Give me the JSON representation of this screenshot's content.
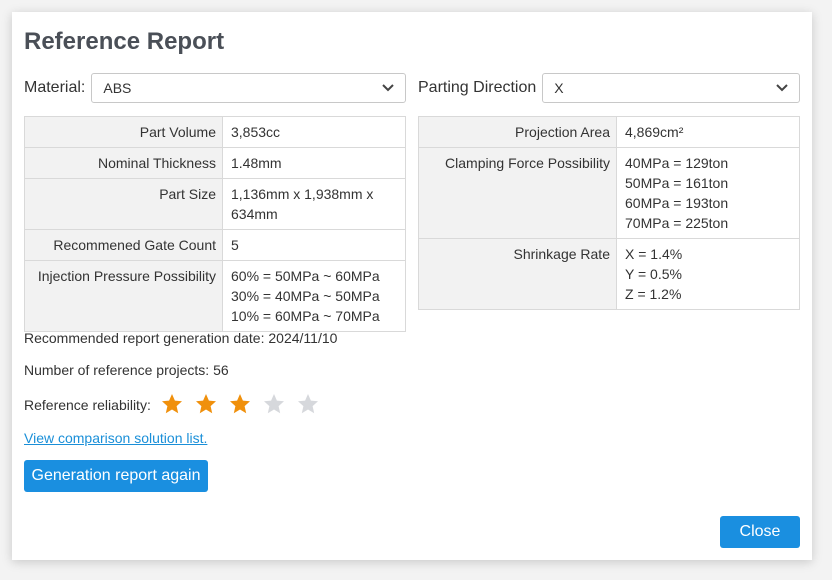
{
  "dialog": {
    "title": "Reference Report",
    "material_label": "Material:",
    "material_value": "ABS",
    "parting_label": "Parting Direction",
    "parting_value": "X"
  },
  "left_table": [
    {
      "key": "Part Volume",
      "lines": [
        "3,853cc"
      ]
    },
    {
      "key": "Nominal Thickness",
      "lines": [
        "1.48mm"
      ]
    },
    {
      "key": "Part Size",
      "lines": [
        "1,136mm x 1,938mm x",
        "634mm"
      ]
    },
    {
      "key": "Recommened Gate Count",
      "lines": [
        "5"
      ]
    },
    {
      "key": "Injection Pressure Possibility",
      "lines": [
        "60% = 50MPa ~ 60MPa",
        "30% = 40MPa ~ 50MPa",
        "10% = 60MPa ~ 70MPa"
      ]
    }
  ],
  "right_table": [
    {
      "key": "Projection Area",
      "lines": [
        "4,869cm²"
      ]
    },
    {
      "key": "Clamping Force Possibility",
      "lines": [
        "40MPa = 129ton",
        "50MPa = 161ton",
        "60MPa = 193ton",
        "70MPa = 225ton"
      ]
    },
    {
      "key": "Shrinkage Rate",
      "lines": [
        "X = 1.4%",
        "Y = 0.5%",
        "Z = 1.2%"
      ]
    }
  ],
  "info": {
    "generation_date": "Recommended report generation date: 2024/11/10",
    "reference_projects": "Number of reference projects: 56",
    "reliability_label": "Reference reliability:",
    "reliability_rating": 3,
    "reliability_max": 5
  },
  "colors": {
    "star_filled": "#f0900c",
    "star_empty": "#d6d8dc",
    "primary": "#1a8fe0",
    "link": "#1a8fd8"
  },
  "actions": {
    "comparison_link": "View comparison solution list.",
    "regenerate": "Generation report again",
    "close": "Close"
  }
}
